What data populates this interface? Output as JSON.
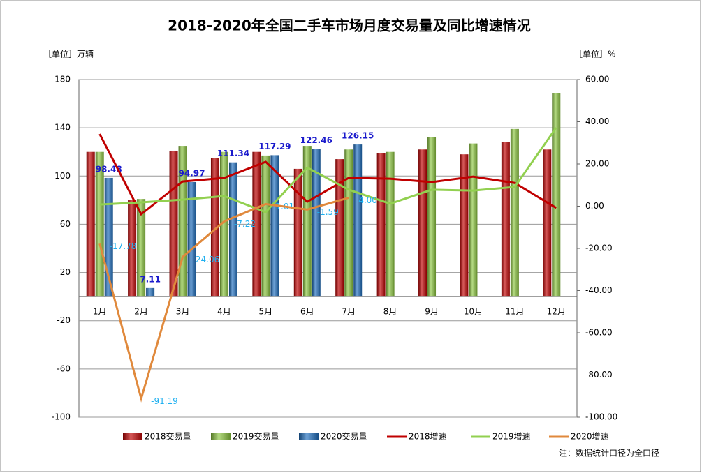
{
  "chart_data": {
    "type": "bar",
    "title": "2018-2020年全国二手车市场月度交易量及同比增速情况",
    "y_label": "［单位］万辆",
    "y2_label": "［单位］%",
    "note": "注：数据统计口径为全口径",
    "categories": [
      "1月",
      "2月",
      "3月",
      "4月",
      "5月",
      "6月",
      "7月",
      "8月",
      "9月",
      "10月",
      "11月",
      "12月"
    ],
    "ylim": [
      -100,
      180
    ],
    "yticks": [
      -100,
      -60,
      -20,
      20,
      60,
      100,
      140,
      180
    ],
    "y2lim": [
      -100,
      60
    ],
    "y2ticks": [
      {
        "value": -100,
        "label": "-100.00"
      },
      {
        "value": -80,
        "label": "-80.00"
      },
      {
        "value": -60,
        "label": "-60.00"
      },
      {
        "value": -40,
        "label": "-40.00"
      },
      {
        "value": -20,
        "label": "-20.00"
      },
      {
        "value": 0,
        "label": "0.00"
      },
      {
        "value": 20,
        "label": "20.00"
      },
      {
        "value": 40,
        "label": "40.00"
      },
      {
        "value": 60,
        "label": "60.00"
      }
    ],
    "grid": true,
    "legend": "bottom",
    "series": [
      {
        "name": "2018交易量",
        "type": "bar",
        "color": "#c00000",
        "values": [
          120,
          80,
          121,
          115,
          120,
          106,
          114,
          119,
          122,
          118,
          128,
          122
        ]
      },
      {
        "name": "2019交易量",
        "type": "bar",
        "color": "#8cc63f",
        "values": [
          120,
          81,
          125,
          120,
          117,
          125,
          122,
          120,
          132,
          127,
          139,
          169
        ]
      },
      {
        "name": "2020交易量",
        "type": "bar",
        "color": "#1f6fc0",
        "values": [
          98.48,
          7.11,
          94.97,
          111.34,
          117.29,
          122.46,
          126.15,
          null,
          null,
          null,
          null,
          null
        ],
        "value_labels": [
          "98.48",
          "7.11",
          "94.97",
          "111.34",
          "117.29",
          "122.46",
          "126.15",
          null,
          null,
          null,
          null,
          null
        ],
        "label_color": "#1a1acc"
      },
      {
        "name": "2018增速",
        "type": "line",
        "axis": "y2",
        "color": "#c00000",
        "values": [
          34.2,
          -3.8,
          11.7,
          13.4,
          21,
          2.1,
          13.4,
          13,
          11.4,
          14,
          11,
          -0.8
        ]
      },
      {
        "name": "2019增速",
        "type": "line",
        "axis": "y2",
        "color": "#92d050",
        "values": [
          0.8,
          1.8,
          3.1,
          4.8,
          -2.8,
          18.3,
          7.8,
          1.2,
          7.8,
          7.4,
          9.1,
          37.2
        ]
      },
      {
        "name": "2020增速",
        "type": "line",
        "axis": "y2",
        "color": "#e0893c",
        "values": [
          -17.78,
          -91.19,
          -24.06,
          -7.22,
          1.01,
          -1.59,
          4,
          null,
          null,
          null,
          null,
          null
        ],
        "value_labels": [
          "-17.78",
          "-91.19",
          "-24.06",
          "-7.22",
          "1.01",
          "-1.59",
          "4.00",
          null,
          null,
          null,
          null,
          null
        ],
        "label_color": "#1fb0f0"
      }
    ]
  }
}
